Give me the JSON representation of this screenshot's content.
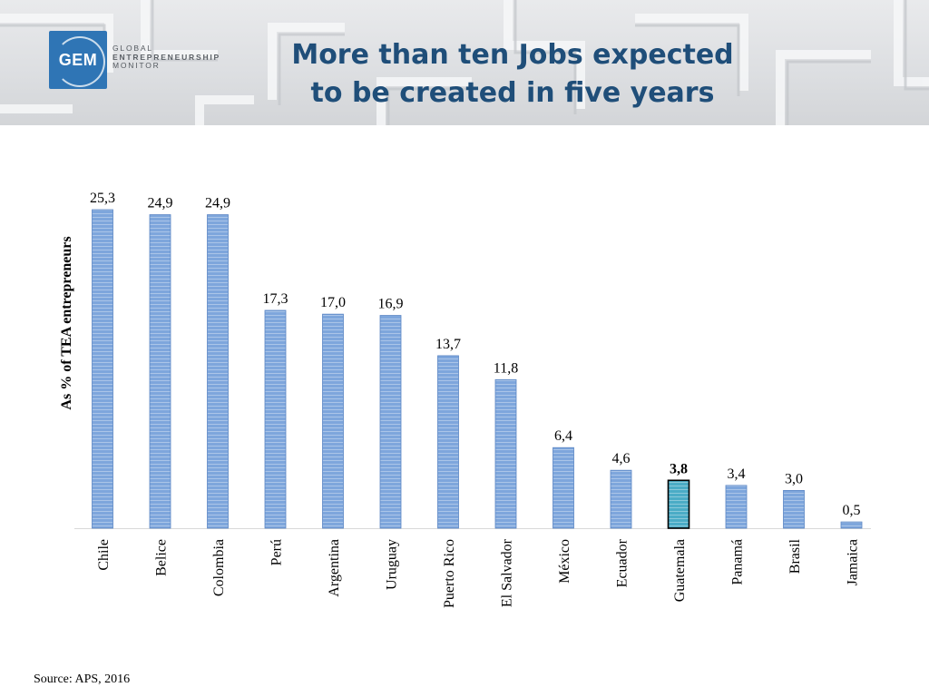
{
  "header": {
    "logo_text": "GEM",
    "logo_words": [
      "GLOBAL",
      "ENTREPRENEURSHIP",
      "MONITOR"
    ],
    "title_lines": [
      "More than ten Jobs expected",
      "to be created in five years"
    ]
  },
  "colors": {
    "bar": "#7ea6dc",
    "bar_edge": "#5b86c4",
    "highlight_bar": "#4bacc6",
    "highlight_edge": "#000000",
    "title": "#1f4e79",
    "logo": "#2f75b5"
  },
  "chart_data": {
    "type": "bar",
    "categories": [
      "Chile",
      "Belice",
      "Colombia",
      "Perú",
      "Argentina",
      "Uruguay",
      "Puerto Rico",
      "El Salvador",
      "México",
      "Ecuador",
      "Guatemala",
      "Panamá",
      "Brasil",
      "Jamaica"
    ],
    "values": [
      25.3,
      24.9,
      24.9,
      17.3,
      17.0,
      16.9,
      13.7,
      11.8,
      6.4,
      4.6,
      3.8,
      3.4,
      3.0,
      0.5
    ],
    "labels": [
      "25,3",
      "24,9",
      "24,9",
      "17,3",
      "17,0",
      "16,9",
      "13,7",
      "11,8",
      "6,4",
      "4,6",
      "3,8",
      "3,4",
      "3,0",
      "0,5"
    ],
    "highlight": "Guatemala",
    "ylabel": "As % of TEA entrepreneurs",
    "xlabel": "",
    "title": "",
    "ylim": [
      0,
      25.3
    ],
    "grid": false,
    "legend": "none"
  },
  "source": "Source: APS, 2016"
}
